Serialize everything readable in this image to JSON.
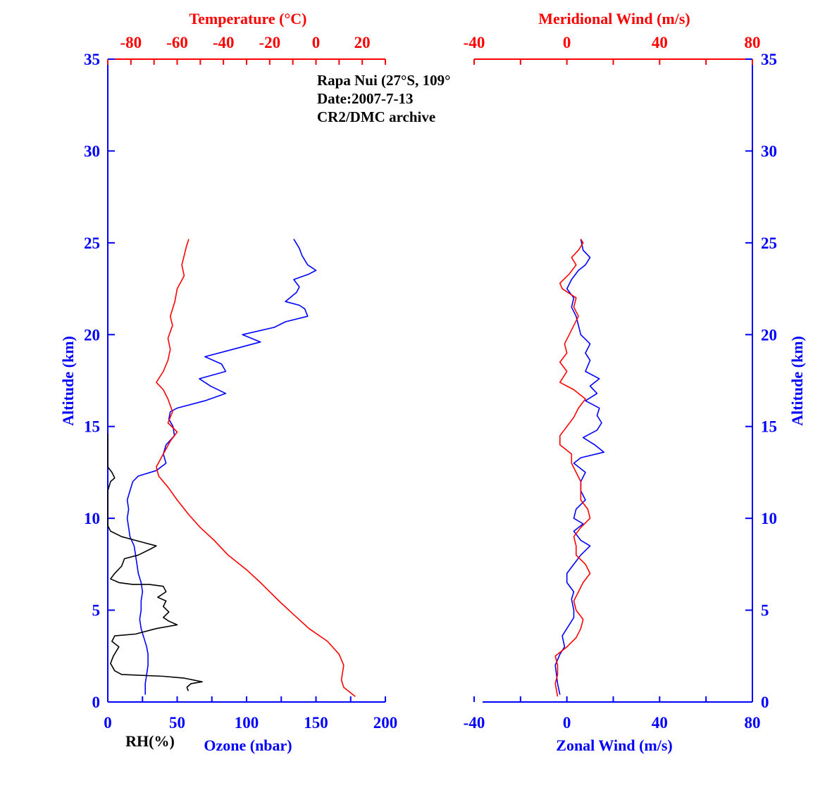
{
  "colors": {
    "ozone": "#0000ff",
    "temperature": "#ff0000",
    "rh": "#000000",
    "zonal": "#0000ff",
    "meridional": "#ff0000",
    "left_axis": "#0000ff",
    "top_axis": "#ff0000"
  },
  "annotation": {
    "station": "Rapa Nui (27°S, 109°",
    "date": "Date:2007-7-13",
    "archive": "CR2/DMC archive"
  },
  "chart_data": [
    {
      "type": "line",
      "panel": "left",
      "ylabel": "Altitude (km)",
      "ylim": [
        0,
        35
      ],
      "yticks": [
        "0",
        "5",
        "10",
        "15",
        "20",
        "25",
        "30",
        "35"
      ],
      "bottom_axis": {
        "label": "Ozone (nbar)",
        "range": [
          0,
          200
        ],
        "ticks": [
          "0",
          "50",
          "100",
          "150",
          "200"
        ]
      },
      "bottom_axis_secondary_label": "RH(%)",
      "top_axis": {
        "label": "Temperature (°C)",
        "range": [
          -90,
          30
        ],
        "ticks": [
          "-80",
          "-60",
          "-40",
          "-20",
          "0",
          "20"
        ]
      },
      "grid": false,
      "series": [
        {
          "name": "Ozone (nbar)",
          "axis": "bottom",
          "color": "#0000ff",
          "points": [
            [
              27,
              0.4
            ],
            [
              27,
              1.0
            ],
            [
              28,
              1.5
            ],
            [
              29,
              2.0
            ],
            [
              29,
              2.6
            ],
            [
              28,
              3.0
            ],
            [
              26,
              3.5
            ],
            [
              24,
              4.0
            ],
            [
              23,
              4.5
            ],
            [
              24,
              5.0
            ],
            [
              24,
              5.5
            ],
            [
              25,
              6.0
            ],
            [
              24,
              6.5
            ],
            [
              22,
              7.0
            ],
            [
              21,
              7.5
            ],
            [
              20,
              8.0
            ],
            [
              19,
              8.5
            ],
            [
              16,
              9.0
            ],
            [
              15,
              9.5
            ],
            [
              14,
              10.0
            ],
            [
              15,
              10.5
            ],
            [
              14,
              11.0
            ],
            [
              16,
              11.5
            ],
            [
              18,
              12.0
            ],
            [
              22,
              12.3
            ],
            [
              35,
              12.6
            ],
            [
              42,
              13.0
            ],
            [
              40,
              13.5
            ],
            [
              42,
              14.0
            ],
            [
              48,
              14.5
            ],
            [
              47,
              15.0
            ],
            [
              44,
              15.4
            ],
            [
              45,
              15.8
            ],
            [
              50,
              16.0
            ],
            [
              70,
              16.4
            ],
            [
              85,
              16.8
            ],
            [
              74,
              17.2
            ],
            [
              66,
              17.6
            ],
            [
              85,
              18.0
            ],
            [
              82,
              18.4
            ],
            [
              70,
              18.8
            ],
            [
              90,
              19.2
            ],
            [
              110,
              19.6
            ],
            [
              97,
              20.0
            ],
            [
              120,
              20.4
            ],
            [
              128,
              20.7
            ],
            [
              144,
              21.0
            ],
            [
              142,
              21.4
            ],
            [
              138,
              21.6
            ],
            [
              128,
              21.8
            ],
            [
              136,
              22.3
            ],
            [
              138,
              22.6
            ],
            [
              134,
              23.0
            ],
            [
              145,
              23.3
            ],
            [
              150,
              23.5
            ],
            [
              144,
              23.8
            ],
            [
              140,
              24.3
            ],
            [
              138,
              24.7
            ],
            [
              134,
              25.2
            ]
          ]
        },
        {
          "name": "Temperature (°C)",
          "axis": "top",
          "color": "#ff0000",
          "points": [
            [
              17,
              0.3
            ],
            [
              12,
              0.8
            ],
            [
              11,
              1.2
            ],
            [
              12,
              2.0
            ],
            [
              10,
              2.6
            ],
            [
              5,
              3.3
            ],
            [
              -3,
              4.0
            ],
            [
              -10,
              4.8
            ],
            [
              -16,
              5.5
            ],
            [
              -24,
              6.5
            ],
            [
              -30,
              7.2
            ],
            [
              -38,
              8.0
            ],
            [
              -44,
              8.8
            ],
            [
              -50,
              9.5
            ],
            [
              -55,
              10.2
            ],
            [
              -60,
              11.0
            ],
            [
              -64,
              11.7
            ],
            [
              -68,
              12.3
            ],
            [
              -69,
              12.8
            ],
            [
              -66,
              13.5
            ],
            [
              -63,
              14.2
            ],
            [
              -60,
              14.7
            ],
            [
              -64,
              15.2
            ],
            [
              -62,
              15.8
            ],
            [
              -64,
              16.5
            ],
            [
              -66,
              17.0
            ],
            [
              -69,
              17.4
            ],
            [
              -66,
              18.0
            ],
            [
              -64,
              18.6
            ],
            [
              -63,
              19.2
            ],
            [
              -64,
              19.8
            ],
            [
              -62,
              20.5
            ],
            [
              -63,
              21.0
            ],
            [
              -61,
              21.8
            ],
            [
              -60,
              22.5
            ],
            [
              -57,
              23.2
            ],
            [
              -58,
              23.8
            ],
            [
              -57,
              24.3
            ],
            [
              -56,
              24.8
            ],
            [
              -55,
              25.2
            ]
          ]
        },
        {
          "name": "RH(%)",
          "axis": "bottom",
          "color": "#000000",
          "points": [
            [
              58,
              0.6
            ],
            [
              57,
              0.8
            ],
            [
              60,
              1.0
            ],
            [
              68,
              1.1
            ],
            [
              55,
              1.3
            ],
            [
              40,
              1.4
            ],
            [
              10,
              1.5
            ],
            [
              5,
              1.7
            ],
            [
              2,
              2.1
            ],
            [
              4,
              2.5
            ],
            [
              8,
              3.0
            ],
            [
              3,
              3.3
            ],
            [
              5,
              3.6
            ],
            [
              20,
              3.7
            ],
            [
              35,
              4.0
            ],
            [
              50,
              4.2
            ],
            [
              44,
              4.4
            ],
            [
              40,
              4.6
            ],
            [
              44,
              4.9
            ],
            [
              40,
              5.2
            ],
            [
              42,
              5.5
            ],
            [
              36,
              5.7
            ],
            [
              42,
              6.0
            ],
            [
              40,
              6.3
            ],
            [
              30,
              6.4
            ],
            [
              18,
              6.4
            ],
            [
              8,
              6.5
            ],
            [
              2,
              6.7
            ],
            [
              5,
              7.0
            ],
            [
              10,
              7.4
            ],
            [
              12,
              7.8
            ],
            [
              22,
              8.0
            ],
            [
              30,
              8.3
            ],
            [
              35,
              8.5
            ],
            [
              25,
              8.7
            ],
            [
              10,
              9.0
            ],
            [
              2,
              9.3
            ],
            [
              0,
              9.6
            ],
            [
              0,
              10.5
            ],
            [
              0,
              11.5
            ],
            [
              2,
              12.0
            ],
            [
              5,
              12.2
            ],
            [
              3,
              12.5
            ],
            [
              0,
              12.8
            ],
            [
              0,
              14.6
            ]
          ]
        }
      ]
    },
    {
      "type": "line",
      "panel": "right",
      "ylabel": "Altitude (km)",
      "ylim": [
        0,
        35
      ],
      "yticks": [
        "0",
        "5",
        "10",
        "15",
        "20",
        "25",
        "30",
        "35"
      ],
      "bottom_axis": {
        "label": "Zonal Wind (m/s)",
        "range": [
          -40,
          80
        ],
        "ticks": [
          "-40",
          "0",
          "40",
          "80"
        ]
      },
      "top_axis": {
        "label": "Meridional Wind (m/s)",
        "range": [
          -40,
          80
        ],
        "ticks": [
          "-40",
          "0",
          "40",
          "80"
        ]
      },
      "grid": false,
      "series": [
        {
          "name": "Zonal Wind (m/s)",
          "axis": "bottom",
          "color": "#0000ff",
          "points": [
            [
              -3,
              0.4
            ],
            [
              -4,
              1.0
            ],
            [
              -5,
              2.0
            ],
            [
              -3,
              2.6
            ],
            [
              -1,
              3.0
            ],
            [
              -2,
              3.6
            ],
            [
              1,
              4.2
            ],
            [
              3,
              4.6
            ],
            [
              3,
              5.0
            ],
            [
              2,
              5.6
            ],
            [
              3,
              6.0
            ],
            [
              0,
              6.5
            ],
            [
              0,
              7.0
            ],
            [
              3,
              7.5
            ],
            [
              6,
              8.0
            ],
            [
              10,
              8.5
            ],
            [
              6,
              8.8
            ],
            [
              3,
              9.3
            ],
            [
              7,
              9.7
            ],
            [
              3,
              10.0
            ],
            [
              4,
              10.5
            ],
            [
              8,
              11.0
            ],
            [
              6,
              11.5
            ],
            [
              6,
              12.0
            ],
            [
              8,
              12.5
            ],
            [
              3,
              13.0
            ],
            [
              6,
              13.3
            ],
            [
              16,
              13.6
            ],
            [
              12,
              14.0
            ],
            [
              7,
              14.4
            ],
            [
              13,
              14.8
            ],
            [
              15,
              15.2
            ],
            [
              13,
              15.6
            ],
            [
              14,
              16.0
            ],
            [
              8,
              16.4
            ],
            [
              13,
              16.8
            ],
            [
              10,
              17.2
            ],
            [
              14,
              17.6
            ],
            [
              8,
              18.0
            ],
            [
              10,
              18.6
            ],
            [
              8,
              19.0
            ],
            [
              10,
              19.5
            ],
            [
              6,
              20.0
            ],
            [
              5,
              20.5
            ],
            [
              4,
              21.0
            ],
            [
              2,
              21.5
            ],
            [
              3,
              22.0
            ],
            [
              0,
              22.5
            ],
            [
              2,
              23.0
            ],
            [
              5,
              23.5
            ],
            [
              8,
              23.8
            ],
            [
              10,
              24.2
            ],
            [
              7,
              24.6
            ],
            [
              6,
              25.2
            ]
          ]
        },
        {
          "name": "Meridional Wind (m/s)",
          "axis": "top",
          "color": "#ff0000",
          "points": [
            [
              -4,
              0.3
            ],
            [
              -5,
              1.0
            ],
            [
              -4,
              1.5
            ],
            [
              -4,
              2.0
            ],
            [
              -5,
              2.5
            ],
            [
              0,
              3.0
            ],
            [
              4,
              3.5
            ],
            [
              6,
              4.0
            ],
            [
              7,
              4.5
            ],
            [
              4,
              5.0
            ],
            [
              3,
              5.5
            ],
            [
              5,
              6.0
            ],
            [
              7,
              6.5
            ],
            [
              10,
              7.0
            ],
            [
              8,
              7.5
            ],
            [
              4,
              8.0
            ],
            [
              4,
              8.5
            ],
            [
              3,
              9.0
            ],
            [
              6,
              9.5
            ],
            [
              10,
              10.0
            ],
            [
              9,
              10.5
            ],
            [
              6,
              11.0
            ],
            [
              6,
              11.5
            ],
            [
              6,
              12.0
            ],
            [
              4,
              12.5
            ],
            [
              2,
              13.0
            ],
            [
              2,
              13.5
            ],
            [
              -3,
              14.0
            ],
            [
              -3,
              14.5
            ],
            [
              0,
              15.0
            ],
            [
              3,
              15.5
            ],
            [
              5,
              16.0
            ],
            [
              8,
              16.5
            ],
            [
              3,
              17.0
            ],
            [
              -3,
              17.4
            ],
            [
              0,
              18.0
            ],
            [
              -3,
              18.5
            ],
            [
              0,
              19.0
            ],
            [
              -1,
              19.5
            ],
            [
              1,
              20.0
            ],
            [
              3,
              20.5
            ],
            [
              5,
              21.0
            ],
            [
              3,
              21.5
            ],
            [
              4,
              22.0
            ],
            [
              -2,
              22.5
            ],
            [
              -3,
              22.8
            ],
            [
              1,
              23.3
            ],
            [
              4,
              23.8
            ],
            [
              2,
              24.2
            ],
            [
              5,
              24.6
            ],
            [
              7,
              25.0
            ],
            [
              6,
              25.2
            ]
          ]
        }
      ]
    }
  ]
}
